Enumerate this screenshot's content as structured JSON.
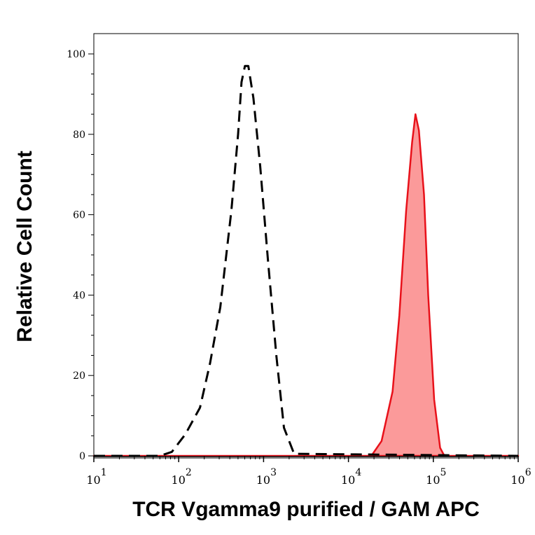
{
  "chart_data": {
    "type": "area",
    "title": "",
    "xlabel": "TCR Vgamma9 purified / GAM APC",
    "ylabel": "Relative Cell Count",
    "xscale": "log",
    "xlim": [
      10,
      1000000
    ],
    "ylim": [
      0,
      100
    ],
    "grid": false,
    "y_ticks": [
      0,
      20,
      40,
      60,
      80,
      100
    ],
    "y_tick_labels": [
      "0",
      "20",
      "40",
      "60",
      "80",
      "100"
    ],
    "x_ticks": [
      {
        "value": 10,
        "base": "10",
        "exp": "1"
      },
      {
        "value": 100,
        "base": "10",
        "exp": "2"
      },
      {
        "value": 1000,
        "base": "10",
        "exp": "3"
      },
      {
        "value": 10000,
        "base": "10",
        "exp": "4"
      },
      {
        "value": 100000,
        "base": "10",
        "exp": "5"
      },
      {
        "value": 1000000,
        "base": "10",
        "exp": "6"
      }
    ],
    "series": [
      {
        "style": "dashed-line",
        "color": "#000000",
        "x": [
          10,
          60,
          83,
          120,
          178,
          234,
          309,
          417,
          501,
          550,
          603,
          661,
          759,
          912,
          1122,
          1413,
          1738,
          2290,
          1000000
        ],
        "y": [
          0,
          0,
          1,
          5.4,
          12,
          23,
          37,
          61,
          80,
          93,
          97,
          97,
          89,
          72,
          49,
          25,
          7,
          0.5,
          0
        ]
      },
      {
        "style": "filled",
        "color": "#e8111a",
        "fill": "#fb9a9a",
        "x": [
          10,
          18620,
          24550,
          33110,
          39810,
          47860,
          56230,
          61660,
          67610,
          77620,
          87100,
          102300,
          120200,
          134900,
          1000000
        ],
        "y": [
          0,
          0,
          3.7,
          16,
          35,
          61,
          78,
          85,
          81,
          65,
          40,
          14,
          2,
          0,
          0
        ]
      }
    ]
  }
}
